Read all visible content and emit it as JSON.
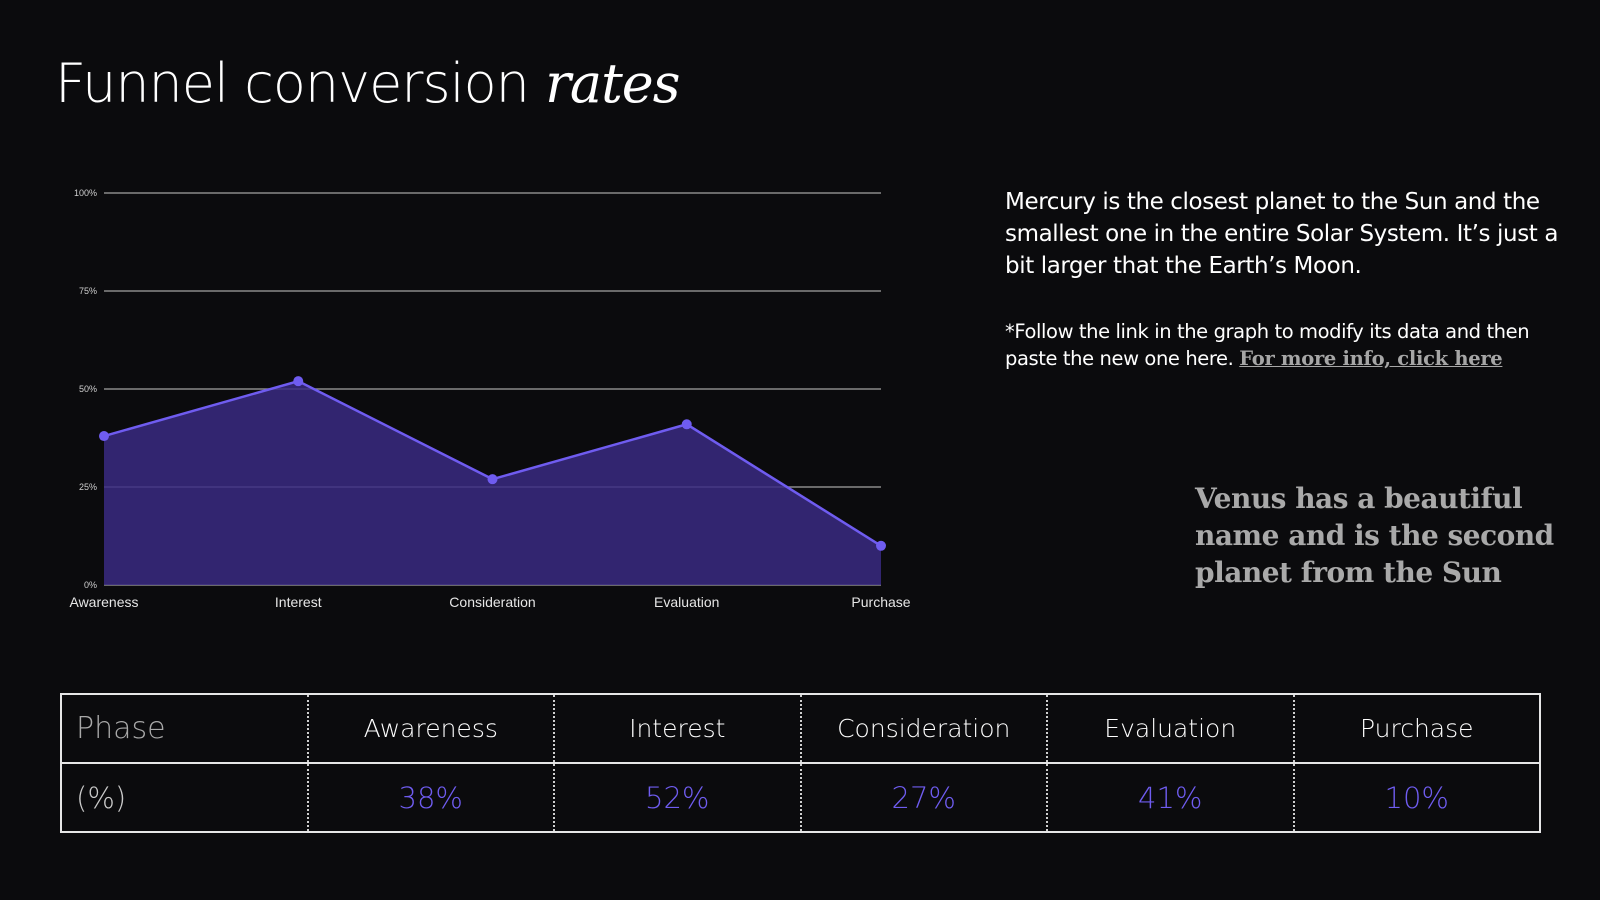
{
  "title": {
    "main": "Funnel conversion ",
    "accent": "rates"
  },
  "description": "Mercury is the closest planet to the Sun and the smallest one in the entire Solar System. It’s just a bit larger that the Earth’s Moon.",
  "note": {
    "text": "*Follow the link in the graph to modify its data and then paste the new one here. ",
    "link": "For more info, click here"
  },
  "quote": "Venus has a beautiful name and is the second planet from the Sun",
  "colors": {
    "accent": "#6f5cf0",
    "fill": "#3a2a82",
    "background": "#0b0b0d",
    "grid": "#8a8a8a"
  },
  "chart_data": {
    "type": "area",
    "categories": [
      "Awareness",
      "Interest",
      "Consideration",
      "Evaluation",
      "Purchase"
    ],
    "values": [
      38,
      52,
      27,
      41,
      10
    ],
    "y_ticks": [
      "0%",
      "25%",
      "50%",
      "75%",
      "100%"
    ],
    "ylim": [
      0,
      100
    ],
    "grid": true
  },
  "table": {
    "header_label": "Phase",
    "row_label": "(%)",
    "phases": [
      "Awareness",
      "Interest",
      "Consideration",
      "Evaluation",
      "Purchase"
    ],
    "values": [
      "38%",
      "52%",
      "27%",
      "41%",
      "10%"
    ]
  }
}
